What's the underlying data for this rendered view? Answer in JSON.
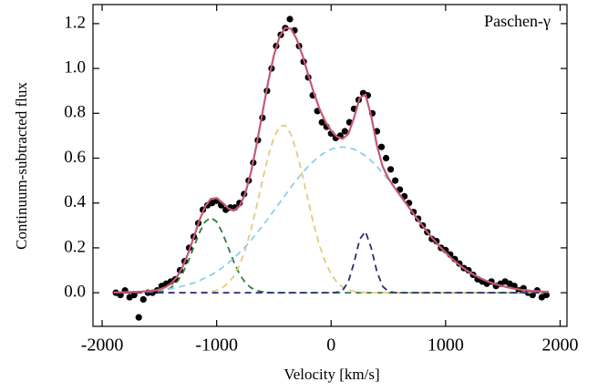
{
  "chart_data": {
    "type": "line",
    "annotation": "Paschen-γ",
    "xlabel": "Velocity [km/s]",
    "ylabel": "Continuum-subtracted flux",
    "xlim": [
      -2080,
      2060
    ],
    "ylim": [
      -0.15,
      1.285
    ],
    "xticks": [
      -2000,
      -1000,
      0,
      1000,
      2000
    ],
    "yticks": [
      {
        "value": 0,
        "label": "0.0"
      },
      0.2,
      0.4,
      0.6,
      0.8,
      {
        "value": 1,
        "label": "1.0"
      },
      1.2
    ],
    "x": [
      -1900,
      -1850,
      -1800,
      -1750,
      -1700,
      -1650,
      -1600,
      -1550,
      -1500,
      -1450,
      -1400,
      -1350,
      -1300,
      -1250,
      -1200,
      -1150,
      -1100,
      -1050,
      -1000,
      -950,
      -900,
      -850,
      -800,
      -750,
      -700,
      -650,
      -600,
      -550,
      -500,
      -450,
      -400,
      -350,
      -300,
      -250,
      -200,
      -150,
      -100,
      -50,
      0,
      50,
      100,
      150,
      200,
      250,
      300,
      350,
      400,
      450,
      500,
      550,
      600,
      650,
      700,
      750,
      800,
      850,
      900,
      950,
      1000,
      1050,
      1100,
      1150,
      1200,
      1250,
      1300,
      1350,
      1400,
      1450,
      1500,
      1550,
      1600,
      1650,
      1700,
      1750,
      1800,
      1850,
      1900
    ],
    "series": [
      {
        "type": "scatter",
        "color": "#000000",
        "x": [
          -1880,
          -1840,
          -1800,
          -1760,
          -1720,
          -1680,
          -1640,
          -1600,
          -1560,
          -1520,
          -1480,
          -1440,
          -1400,
          -1360,
          -1320,
          -1280,
          -1240,
          -1200,
          -1160,
          -1120,
          -1080,
          -1040,
          -1000,
          -960,
          -920,
          -880,
          -840,
          -800,
          -760,
          -720,
          -680,
          -640,
          -600,
          -560,
          -520,
          -480,
          -440,
          -400,
          -360,
          -320,
          -280,
          -240,
          -200,
          -160,
          -120,
          -80,
          -40,
          0,
          40,
          80,
          120,
          160,
          200,
          240,
          280,
          320,
          360,
          400,
          440,
          480,
          520,
          560,
          600,
          640,
          680,
          720,
          760,
          800,
          840,
          880,
          920,
          960,
          1000,
          1040,
          1080,
          1120,
          1160,
          1200,
          1240,
          1280,
          1320,
          1360,
          1400,
          1440,
          1480,
          1520,
          1560,
          1600,
          1640,
          1680,
          1720,
          1760,
          1800,
          1840,
          1880
        ],
        "values": [
          0,
          -0.01,
          0.01,
          -0.02,
          -0.01,
          -0.11,
          -0.03,
          0,
          0,
          0.01,
          0.03,
          0.04,
          0.05,
          0.06,
          0.1,
          0.14,
          0.2,
          0.25,
          0.31,
          0.37,
          0.39,
          0.4,
          0.41,
          0.39,
          0.37,
          0.38,
          0.38,
          0.4,
          0.44,
          0.5,
          0.58,
          0.68,
          0.78,
          0.9,
          1.0,
          1.1,
          1.15,
          1.18,
          1.22,
          1.17,
          1.1,
          1.03,
          0.96,
          0.88,
          0.81,
          0.76,
          0.74,
          0.71,
          0.69,
          0.7,
          0.72,
          0.76,
          0.82,
          0.86,
          0.89,
          0.88,
          0.8,
          0.72,
          0.65,
          0.6,
          0.55,
          0.5,
          0.46,
          0.43,
          0.4,
          0.36,
          0.33,
          0.3,
          0.27,
          0.24,
          0.23,
          0.2,
          0.19,
          0.17,
          0.15,
          0.13,
          0.11,
          0.1,
          0.08,
          0.06,
          0.05,
          0.04,
          0.05,
          0.03,
          0.04,
          0.05,
          0.04,
          0.03,
          0.01,
          0.02,
          0,
          -0.01,
          0.01,
          -0.02,
          -0.01
        ]
      },
      {
        "type": "line",
        "dashed": true,
        "color": "#2e7d3a",
        "values": [
          0,
          0,
          0,
          0,
          0,
          0,
          0,
          0.001,
          0.004,
          0.01,
          0.022,
          0.045,
          0.083,
          0.138,
          0.203,
          0.268,
          0.317,
          0.335,
          0.317,
          0.268,
          0.203,
          0.138,
          0.083,
          0.045,
          0.022,
          0.01,
          0.004,
          0.001,
          0,
          0,
          0,
          0,
          0,
          0,
          0,
          0,
          0,
          0,
          0,
          0,
          0,
          0,
          0,
          0,
          0,
          0,
          0,
          0,
          0,
          0,
          0,
          0,
          0,
          0,
          0,
          0,
          0,
          0,
          0,
          0,
          0,
          0,
          0,
          0,
          0,
          0,
          0,
          0,
          0,
          0,
          0,
          0,
          0,
          0,
          0,
          0,
          0
        ]
      },
      {
        "type": "line",
        "dashed": true,
        "color": "#e3ca7e",
        "values": [
          0,
          0,
          0,
          0,
          0,
          0,
          0,
          0,
          0,
          0,
          0,
          0,
          0,
          0,
          0,
          0.001,
          0.002,
          0.005,
          0.011,
          0.022,
          0.042,
          0.074,
          0.124,
          0.192,
          0.281,
          0.387,
          0.5,
          0.608,
          0.692,
          0.742,
          0.746,
          0.706,
          0.626,
          0.523,
          0.409,
          0.302,
          0.208,
          0.136,
          0.083,
          0.047,
          0.025,
          0.013,
          0.006,
          0.003,
          0.001,
          0,
          0,
          0,
          0,
          0,
          0,
          0,
          0,
          0,
          0,
          0,
          0,
          0,
          0,
          0,
          0,
          0,
          0,
          0,
          0,
          0,
          0,
          0,
          0,
          0,
          0,
          0,
          0,
          0,
          0,
          0,
          0
        ]
      },
      {
        "type": "line",
        "dashed": true,
        "color": "#8ecfe8",
        "values": [
          0.001,
          0.002,
          0.002,
          0.003,
          0.004,
          0.005,
          0.007,
          0.008,
          0.011,
          0.014,
          0.018,
          0.023,
          0.029,
          0.036,
          0.044,
          0.054,
          0.066,
          0.079,
          0.094,
          0.112,
          0.132,
          0.154,
          0.179,
          0.205,
          0.234,
          0.265,
          0.298,
          0.331,
          0.366,
          0.401,
          0.436,
          0.471,
          0.504,
          0.535,
          0.563,
          0.588,
          0.61,
          0.627,
          0.64,
          0.647,
          0.65,
          0.647,
          0.64,
          0.627,
          0.61,
          0.588,
          0.563,
          0.535,
          0.504,
          0.471,
          0.436,
          0.401,
          0.366,
          0.331,
          0.298,
          0.265,
          0.234,
          0.205,
          0.179,
          0.154,
          0.132,
          0.112,
          0.094,
          0.079,
          0.066,
          0.054,
          0.044,
          0.036,
          0.029,
          0.023,
          0.018,
          0.014,
          0.011,
          0.008,
          0.007,
          0.005,
          0.004
        ]
      },
      {
        "type": "line",
        "dashed": true,
        "color": "#2d2a78",
        "values": [
          0,
          0,
          0,
          0,
          0,
          0,
          0,
          0,
          0,
          0,
          0,
          0,
          0,
          0,
          0,
          0,
          0,
          0,
          0,
          0,
          0,
          0,
          0,
          0,
          0,
          0,
          0,
          0,
          0,
          0,
          0,
          0,
          0,
          0,
          0,
          0,
          0,
          0,
          0,
          0.002,
          0.011,
          0.048,
          0.134,
          0.239,
          0.273,
          0.2,
          0.094,
          0.028,
          0.006,
          0.001,
          0,
          0,
          0,
          0,
          0,
          0,
          0,
          0,
          0,
          0,
          0,
          0,
          0,
          0,
          0,
          0,
          0,
          0,
          0,
          0,
          0,
          0,
          0,
          0,
          0,
          0,
          0
        ]
      },
      {
        "type": "line",
        "dashed": false,
        "color": "#c45a72",
        "values": [
          0.001,
          0.002,
          0.002,
          0.003,
          0.004,
          0.005,
          0.007,
          0.009,
          0.015,
          0.024,
          0.04,
          0.068,
          0.112,
          0.174,
          0.247,
          0.323,
          0.385,
          0.419,
          0.422,
          0.402,
          0.377,
          0.366,
          0.386,
          0.442,
          0.537,
          0.662,
          0.802,
          0.94,
          1.058,
          1.143,
          1.182,
          1.177,
          1.13,
          1.058,
          0.972,
          0.89,
          0.818,
          0.763,
          0.723,
          0.696,
          0.686,
          0.708,
          0.78,
          0.869,
          0.884,
          0.788,
          0.657,
          0.563,
          0.51,
          0.472,
          0.436,
          0.401,
          0.366,
          0.331,
          0.298,
          0.265,
          0.234,
          0.205,
          0.179,
          0.154,
          0.132,
          0.112,
          0.094,
          0.079,
          0.066,
          0.054,
          0.044,
          0.036,
          0.029,
          0.023,
          0.018,
          0.014,
          0.011,
          0.008,
          0.007,
          0.005,
          0.004
        ]
      }
    ]
  }
}
